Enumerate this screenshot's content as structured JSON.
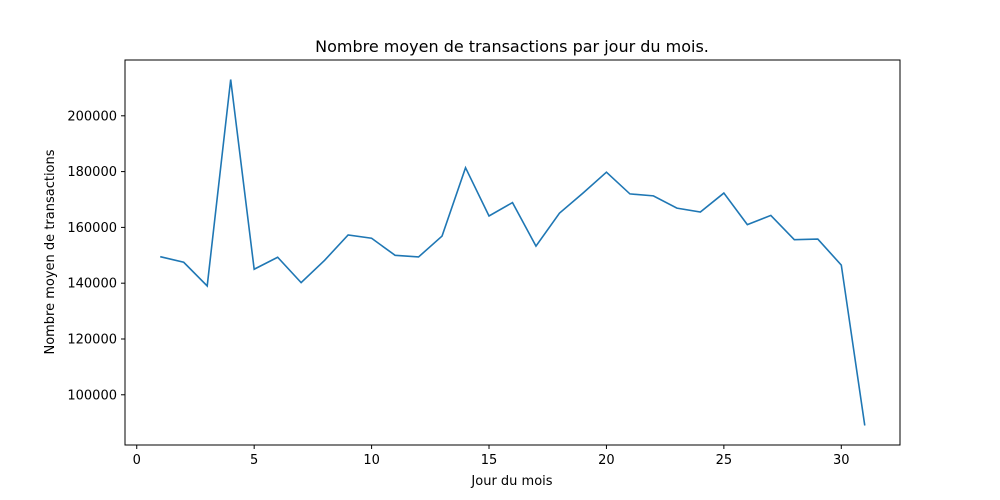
{
  "chart_data": {
    "type": "line",
    "title": "Nombre moyen de transactions par jour du mois.",
    "xlabel": "Jour du mois",
    "ylabel": "Nombre moyen de transactions",
    "xlim": [
      -0.5,
      32.5
    ],
    "ylim": [
      82000,
      220000
    ],
    "xticks": [
      0,
      5,
      10,
      15,
      20,
      25,
      30
    ],
    "yticks": [
      100000,
      120000,
      140000,
      160000,
      180000,
      200000
    ],
    "grid": false,
    "series": [
      {
        "color": "#1f77b4",
        "x": [
          1,
          2,
          3,
          4,
          5,
          6,
          7,
          8,
          9,
          10,
          11,
          12,
          13,
          14,
          15,
          16,
          17,
          18,
          19,
          20,
          21,
          22,
          23,
          24,
          25,
          26,
          27,
          28,
          29,
          30,
          31
        ],
        "values": [
          149500,
          147500,
          139000,
          213000,
          145000,
          149300,
          140200,
          148200,
          157300,
          156100,
          150000,
          149400,
          156900,
          181400,
          164100,
          168900,
          153300,
          165100,
          172300,
          179800,
          172000,
          171300,
          166900,
          165500,
          172300,
          161000,
          164300,
          155600,
          155800,
          146500,
          89000
        ]
      }
    ]
  }
}
